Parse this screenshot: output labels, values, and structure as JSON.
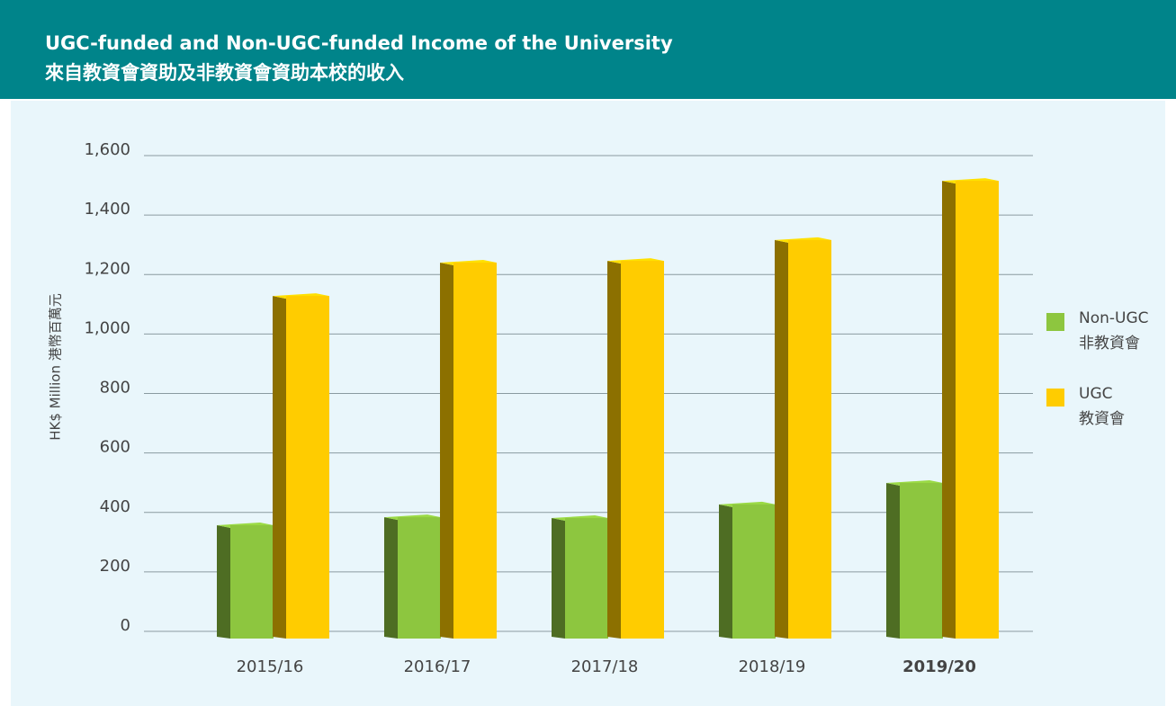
{
  "chart_data": {
    "type": "bar",
    "title": "UGC-funded and Non-UGC-funded Income of the University",
    "title_zh": "來自教資會資助及非教資會資助本校的收入",
    "y_label": "HK$ Million  港幣百萬元",
    "categories": [
      "2015/16",
      "2016/17",
      "2017/18",
      "2018/19",
      "2019/20"
    ],
    "series": [
      {
        "name": "Non-UGC",
        "name_zh": "非教資會",
        "color": "#8dc63f",
        "values": [
          366,
          393,
          390,
          436,
          508
        ]
      },
      {
        "name": "UGC",
        "name_zh": "教資會",
        "color": "#ffcc00",
        "values": [
          1137,
          1249,
          1255,
          1325,
          1524
        ]
      }
    ],
    "ylim": [
      0,
      1600
    ],
    "yticks": [
      0,
      200,
      400,
      600,
      800,
      {
        "value": 1000,
        "label": "1,000"
      },
      {
        "value": 1200,
        "label": "1,200"
      },
      {
        "value": 1400,
        "label": "1,400"
      },
      {
        "value": 1600,
        "label": "1,600"
      }
    ],
    "grid": true,
    "legend": "right"
  }
}
